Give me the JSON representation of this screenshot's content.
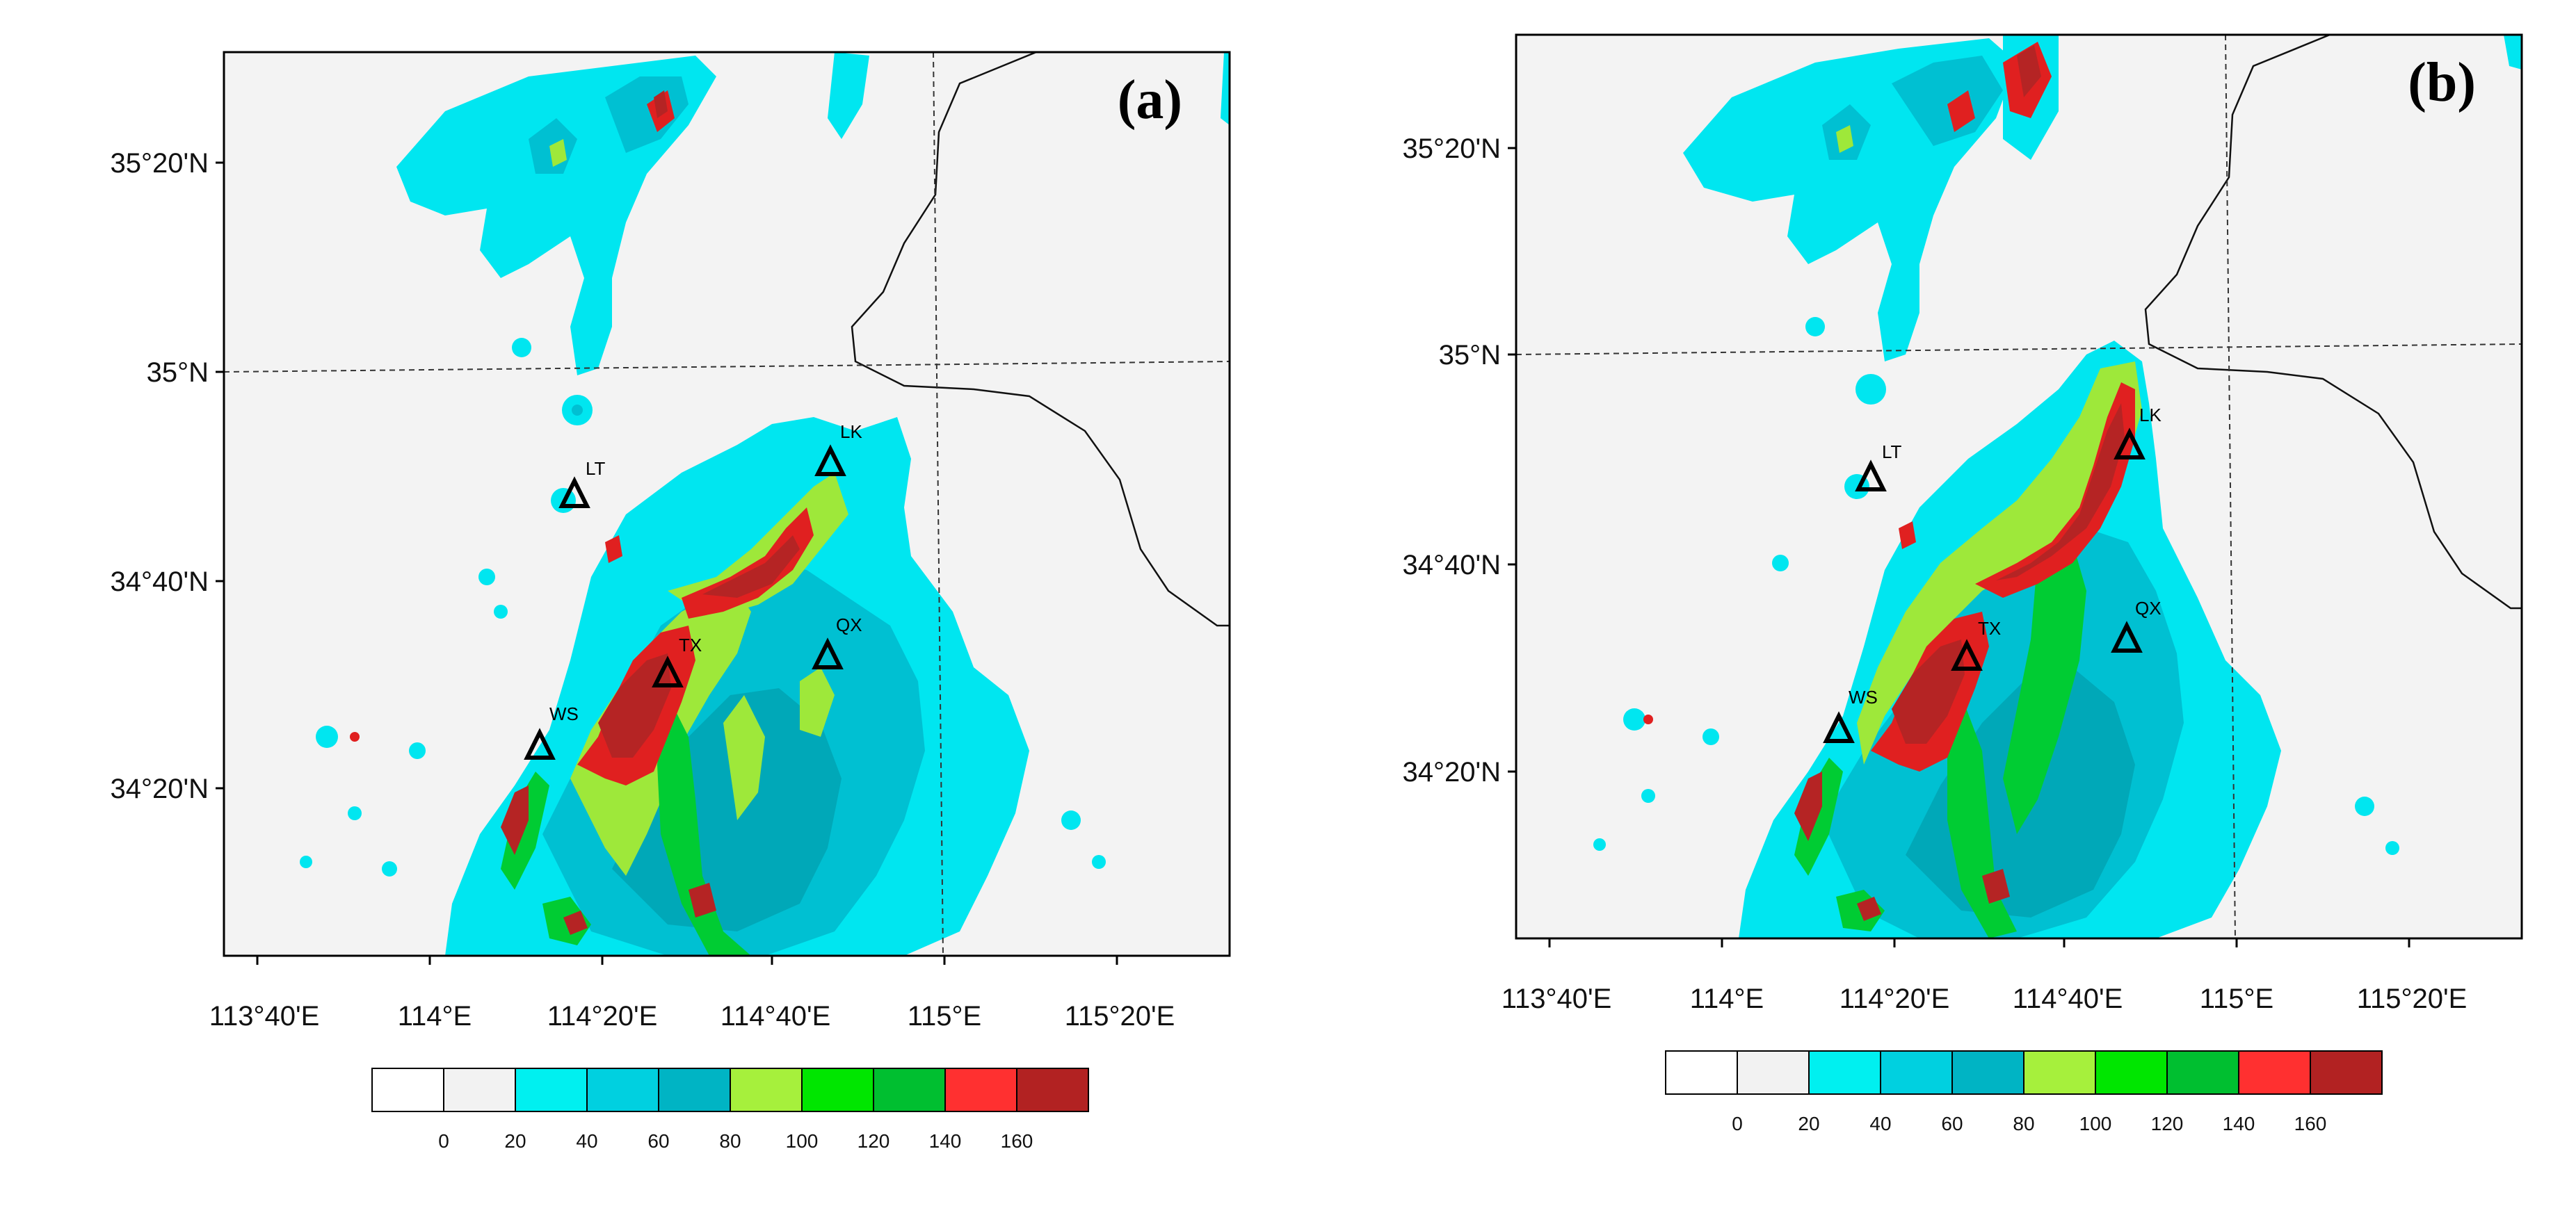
{
  "panels": [
    {
      "id": "a",
      "label": "(a)",
      "lat_ticks": [
        "35°20'N",
        "35°N",
        "34°40'N",
        "34°20'N"
      ],
      "lon_ticks": [
        "113°40'E",
        "114°E",
        "114°20'E",
        "114°40'E",
        "115°E",
        "115°20'E"
      ],
      "stations": [
        {
          "name": "LT"
        },
        {
          "name": "LK"
        },
        {
          "name": "TX"
        },
        {
          "name": "QX"
        },
        {
          "name": "WS"
        }
      ]
    },
    {
      "id": "b",
      "label": "(b)",
      "lat_ticks": [
        "35°20'N",
        "35°N",
        "34°40'N",
        "34°20'N"
      ],
      "lon_ticks": [
        "113°40'E",
        "114°E",
        "114°20'E",
        "114°40'E",
        "115°E",
        "115°20'E"
      ],
      "stations": [
        {
          "name": "LT"
        },
        {
          "name": "LK"
        },
        {
          "name": "TX"
        },
        {
          "name": "QX"
        },
        {
          "name": "WS"
        }
      ]
    }
  ],
  "colorbar": {
    "labels": [
      "0",
      "20",
      "40",
      "60",
      "80",
      "100",
      "120",
      "140",
      "160"
    ],
    "colors": [
      "#ffffff",
      "#f2f2f2",
      "#00f0f0",
      "#00d0e0",
      "#00b4c4",
      "#a6f03c",
      "#00e600",
      "#00bf30",
      "#ff3030",
      "#b22222"
    ]
  },
  "map_colors": {
    "background": "#f3f3f3",
    "cyan": "#00e6f0",
    "cyan_dark": "#00c0d2",
    "teal": "#00a8b8",
    "lime": "#9ee83a",
    "green": "#00cc33",
    "red": "#e02020",
    "dark_red": "#b52424"
  }
}
